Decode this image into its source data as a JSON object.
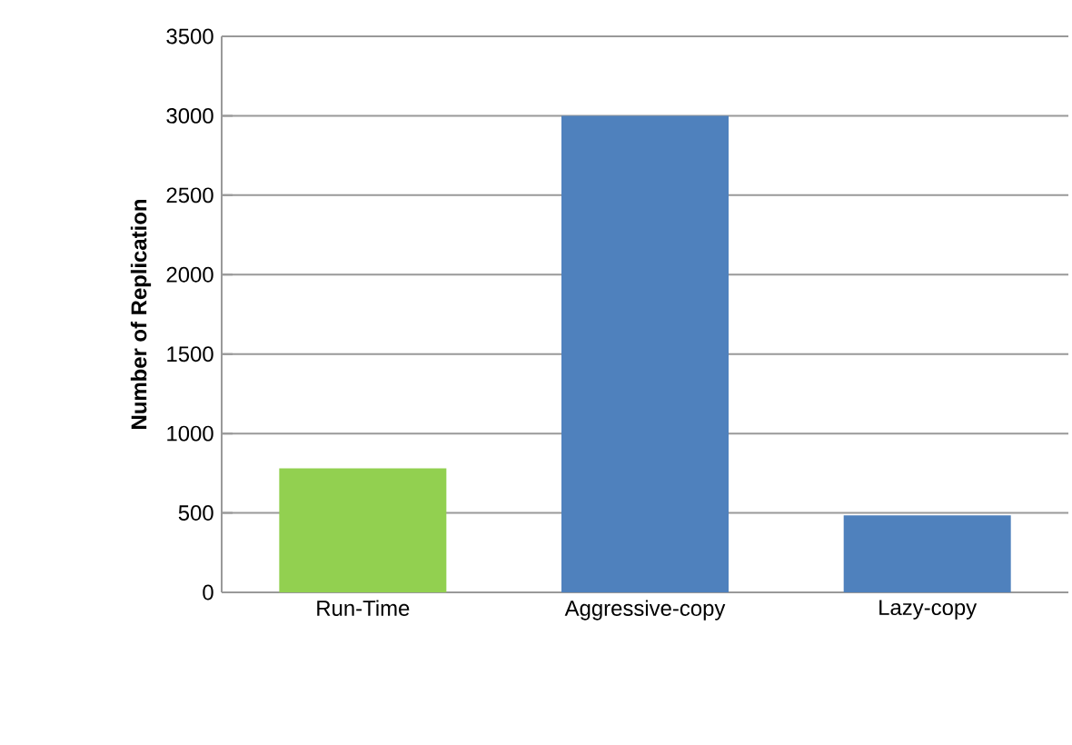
{
  "chart_data": {
    "type": "bar",
    "ylabel": "Number of Replication",
    "categories": [
      "Run-Time",
      "Aggressive-copy",
      "Lazy-copy"
    ],
    "values": [
      780,
      3000,
      485
    ],
    "colors": [
      "#92d050",
      "#4f81bd",
      "#4f81bd"
    ],
    "ylim": [
      0,
      3500
    ],
    "yticks": [
      0,
      500,
      1000,
      1500,
      2000,
      2500,
      3000,
      3500
    ],
    "grid": "y"
  }
}
